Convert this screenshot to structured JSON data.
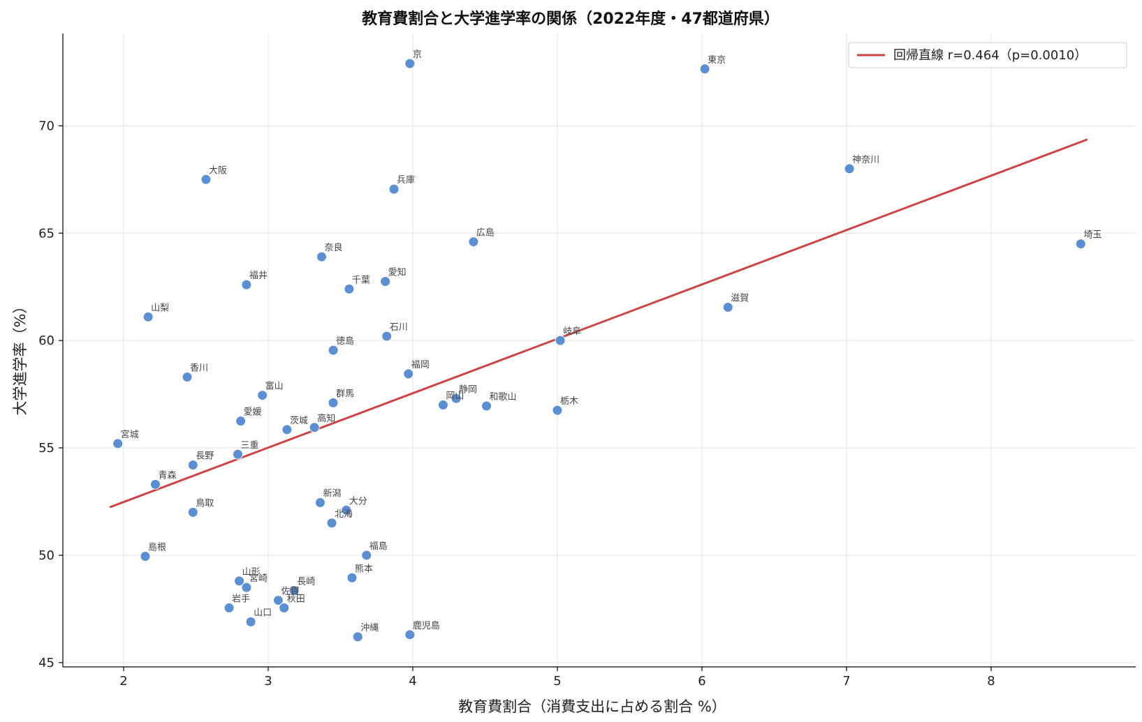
{
  "chart_data": {
    "type": "scatter",
    "title": "教育費割合と大学進学率の関係（2022年度・47都道府県）",
    "xlabel": "教育費割合（消費支出に占める割合 %）",
    "ylabel": "大学進学率（%）",
    "xlim": [
      1.58,
      9.0
    ],
    "ylim": [
      44.8,
      74.3
    ],
    "xticks": [
      2,
      3,
      4,
      5,
      6,
      7,
      8
    ],
    "yticks": [
      45,
      50,
      55,
      60,
      65,
      70
    ],
    "grid": true,
    "legend_position": "top-right",
    "point_color": "#5b8fd4",
    "regression": {
      "label": "回帰直線  r=0.464（p=0.0010）",
      "color": "#cc4444",
      "x": [
        1.91,
        8.66
      ],
      "y": [
        52.25,
        69.35
      ]
    },
    "points": [
      {
        "name": "京",
        "x": 3.98,
        "y": 72.9
      },
      {
        "name": "東京",
        "x": 6.02,
        "y": 72.65
      },
      {
        "name": "神奈川",
        "x": 7.02,
        "y": 68.0
      },
      {
        "name": "大阪",
        "x": 2.57,
        "y": 67.5
      },
      {
        "name": "兵庫",
        "x": 3.87,
        "y": 67.05
      },
      {
        "name": "広島",
        "x": 4.42,
        "y": 64.6
      },
      {
        "name": "埼玉",
        "x": 8.62,
        "y": 64.5
      },
      {
        "name": "奈良",
        "x": 3.37,
        "y": 63.9
      },
      {
        "name": "愛知",
        "x": 3.81,
        "y": 62.75
      },
      {
        "name": "福井",
        "x": 2.85,
        "y": 62.6
      },
      {
        "name": "千葉",
        "x": 3.56,
        "y": 62.4
      },
      {
        "name": "滋賀",
        "x": 6.18,
        "y": 61.55
      },
      {
        "name": "山梨",
        "x": 2.17,
        "y": 61.1
      },
      {
        "name": "石川",
        "x": 3.82,
        "y": 60.2
      },
      {
        "name": "岐阜",
        "x": 5.02,
        "y": 60.0
      },
      {
        "name": "徳島",
        "x": 3.45,
        "y": 59.55
      },
      {
        "name": "福岡",
        "x": 3.97,
        "y": 58.45
      },
      {
        "name": "香川",
        "x": 2.44,
        "y": 58.3
      },
      {
        "name": "富山",
        "x": 2.96,
        "y": 57.45
      },
      {
        "name": "静岡",
        "x": 4.3,
        "y": 57.3
      },
      {
        "name": "群馬",
        "x": 3.45,
        "y": 57.1
      },
      {
        "name": "岡山",
        "x": 4.21,
        "y": 57.0
      },
      {
        "name": "和歌山",
        "x": 4.51,
        "y": 56.95
      },
      {
        "name": "栃木",
        "x": 5.0,
        "y": 56.75
      },
      {
        "name": "愛媛",
        "x": 2.81,
        "y": 56.25
      },
      {
        "name": "高知",
        "x": 3.32,
        "y": 55.95
      },
      {
        "name": "茨城",
        "x": 3.13,
        "y": 55.85
      },
      {
        "name": "宮城",
        "x": 1.96,
        "y": 55.2
      },
      {
        "name": "三重",
        "x": 2.79,
        "y": 54.7
      },
      {
        "name": "長野",
        "x": 2.48,
        "y": 54.2
      },
      {
        "name": "青森",
        "x": 2.22,
        "y": 53.3
      },
      {
        "name": "新潟",
        "x": 3.36,
        "y": 52.45
      },
      {
        "name": "大分",
        "x": 3.54,
        "y": 52.1
      },
      {
        "name": "鳥取",
        "x": 2.48,
        "y": 52.0
      },
      {
        "name": "北海",
        "x": 3.44,
        "y": 51.5
      },
      {
        "name": "福島",
        "x": 3.68,
        "y": 50.0
      },
      {
        "name": "島根",
        "x": 2.15,
        "y": 49.95
      },
      {
        "name": "熊本",
        "x": 3.58,
        "y": 48.95
      },
      {
        "name": "山形",
        "x": 2.8,
        "y": 48.8
      },
      {
        "name": "宮崎",
        "x": 2.85,
        "y": 48.5
      },
      {
        "name": "長崎",
        "x": 3.18,
        "y": 48.35
      },
      {
        "name": "佐賀",
        "x": 3.07,
        "y": 47.9
      },
      {
        "name": "秋田",
        "x": 3.11,
        "y": 47.55
      },
      {
        "name": "岩手",
        "x": 2.73,
        "y": 47.55
      },
      {
        "name": "山口",
        "x": 2.88,
        "y": 46.9
      },
      {
        "name": "鹿児島",
        "x": 3.98,
        "y": 46.3
      },
      {
        "name": "沖縄",
        "x": 3.62,
        "y": 46.2
      }
    ]
  }
}
